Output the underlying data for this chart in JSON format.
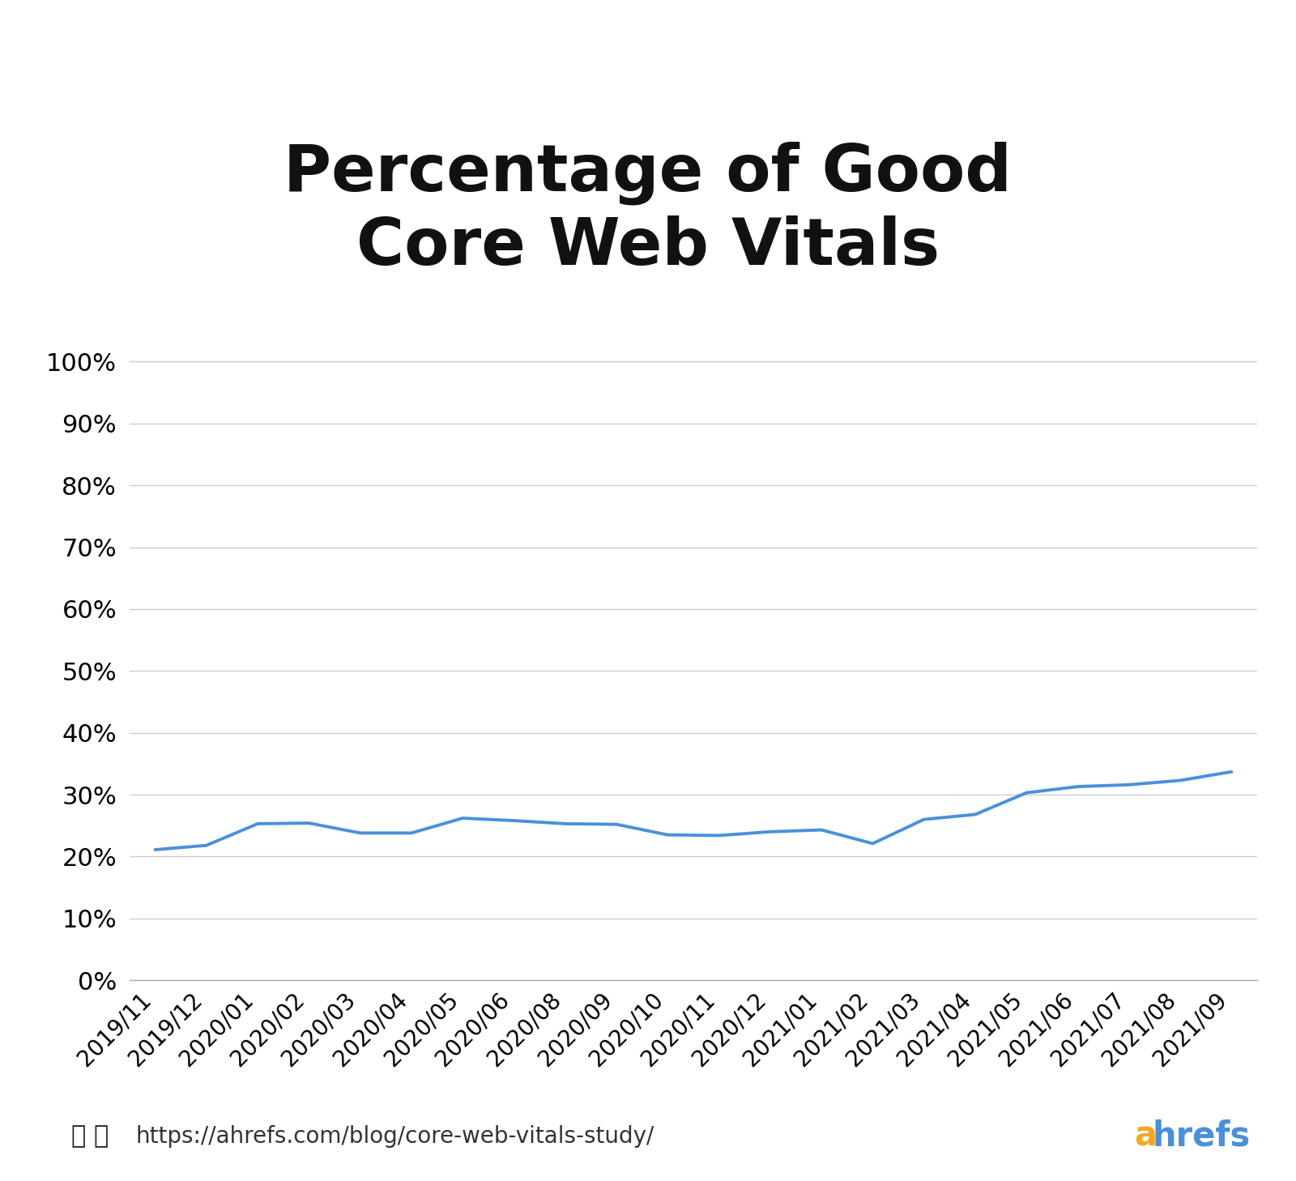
{
  "title": "Percentage of Good\nCore Web Vitals",
  "x_labels": [
    "2019/11",
    "2019/12",
    "2020/01",
    "2020/02",
    "2020/03",
    "2020/04",
    "2020/05",
    "2020/06",
    "2020/08",
    "2020/09",
    "2020/10",
    "2020/11",
    "2020/12",
    "2021/01",
    "2021/02",
    "2021/03",
    "2021/04",
    "2021/05",
    "2021/06",
    "2021/07",
    "2021/08",
    "2021/09"
  ],
  "y_values": [
    0.211,
    0.218,
    0.253,
    0.254,
    0.238,
    0.238,
    0.262,
    0.258,
    0.253,
    0.252,
    0.235,
    0.234,
    0.24,
    0.243,
    0.221,
    0.26,
    0.268,
    0.303,
    0.313,
    0.316,
    0.323,
    0.337
  ],
  "line_color": "#4A90D9",
  "line_width": 2.8,
  "background_color": "#ffffff",
  "title_fontsize": 58,
  "title_fontweight": "bold",
  "title_color": "#111111",
  "ytick_fontsize": 22,
  "xtick_fontsize": 20,
  "ylim": [
    0,
    1.05
  ],
  "yticks": [
    0.0,
    0.1,
    0.2,
    0.3,
    0.4,
    0.5,
    0.6,
    0.7,
    0.8,
    0.9,
    1.0
  ],
  "grid_color": "#cccccc",
  "grid_linewidth": 1.0,
  "url_text": "https://ahrefs.com/blog/core-web-vitals-study/",
  "url_fontsize": 20,
  "brand_color_a": "#F5A623",
  "brand_color_hrefs": "#4A90D9",
  "brand_fontsize": 30
}
